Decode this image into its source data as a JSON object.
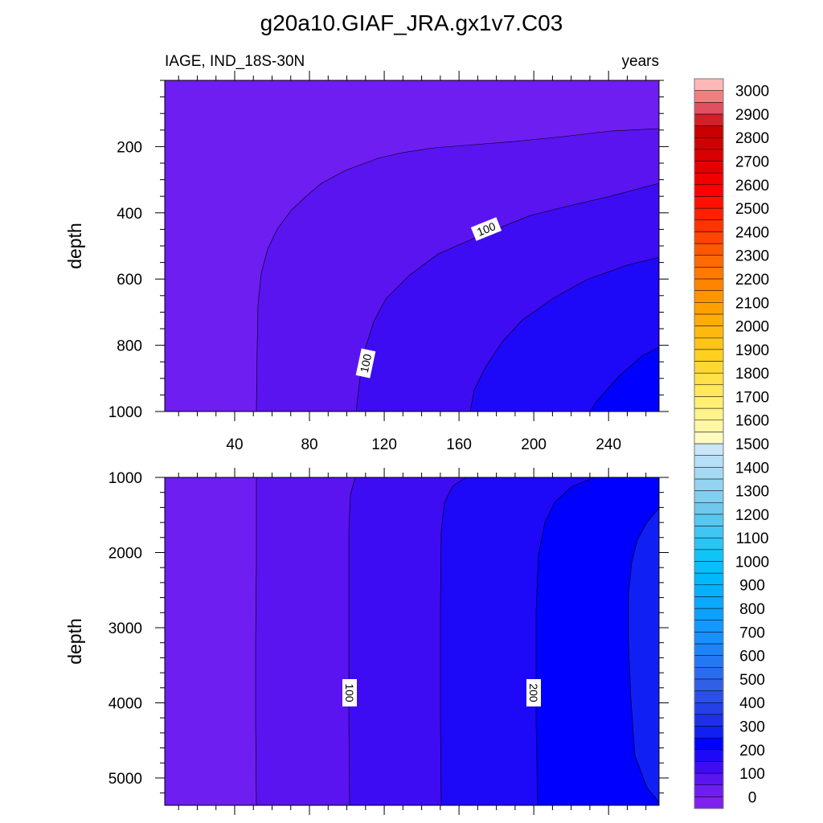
{
  "chart_data": {
    "type": "contour",
    "title": "g20a10.GIAF_JRA.gx1v7.C03",
    "left_string": "IAGE, IND_18S-30N",
    "right_string": "years",
    "xlim": [
      2.6,
      267
    ],
    "x_ticks": [
      40,
      80,
      120,
      160,
      200,
      240
    ],
    "panels": [
      {
        "name": "upper",
        "ylabel": "depth",
        "ylim": [
          0,
          1000
        ],
        "y_ticks": [
          200,
          400,
          600,
          800,
          1000
        ],
        "y_minor_step": 50,
        "contour_levels": [
          50,
          100,
          150,
          200
        ],
        "line_labels": [
          "100",
          "100"
        ]
      },
      {
        "name": "lower",
        "ylabel": "depth",
        "ylim": [
          1000,
          5364
        ],
        "y_ticks": [
          1000,
          2000,
          3000,
          4000,
          5000
        ],
        "y_minor_step": 200,
        "contour_levels": [
          50,
          100,
          150,
          200,
          250
        ],
        "line_labels": [
          "100",
          "200"
        ]
      }
    ],
    "colorbar": {
      "min": 0,
      "max": 3000,
      "step": 50,
      "labels": [
        "0",
        "100",
        "200",
        "300",
        "400",
        "500",
        "600",
        "700",
        "800",
        "900",
        "1000",
        "1100",
        "1200",
        "1300",
        "1400",
        "1500",
        "1600",
        "1700",
        "1800",
        "1900",
        "2000",
        "2100",
        "2200",
        "2300",
        "2400",
        "2500",
        "2600",
        "2700",
        "2800",
        "2900",
        "3000"
      ],
      "color_stops": [
        [
          0,
          "#7f1ff0"
        ],
        [
          1,
          "#6e1ef0"
        ],
        [
          2,
          "#5a14f0"
        ],
        [
          3,
          "#3e0cf2"
        ],
        [
          4,
          "#1e08f8"
        ],
        [
          5,
          "#0000ff"
        ],
        [
          6,
          "#1020f0"
        ],
        [
          7,
          "#2030e8"
        ],
        [
          10,
          "#3060e8"
        ],
        [
          14,
          "#1890ff"
        ],
        [
          19,
          "#00b8ff"
        ],
        [
          21,
          "#10c4f8"
        ],
        [
          25,
          "#70c8ec"
        ],
        [
          30,
          "#c8e6f8"
        ],
        [
          31,
          "#fffac0"
        ],
        [
          34,
          "#fff070"
        ],
        [
          38,
          "#ffd020"
        ],
        [
          42,
          "#ffa000"
        ],
        [
          46,
          "#ff6a00"
        ],
        [
          50,
          "#ff2000"
        ],
        [
          52,
          "#ff0000"
        ],
        [
          55,
          "#d80000"
        ],
        [
          57,
          "#c80000"
        ],
        [
          58,
          "#d02028"
        ],
        [
          59,
          "#e05060"
        ],
        [
          60,
          "#f08080"
        ],
        [
          61,
          "#ffb8b8"
        ]
      ]
    },
    "region_colors": [
      "#6e1ef0",
      "#5a14f0",
      "#3e0cf2",
      "#1e08f8",
      "#0000ff",
      "#1020f4"
    ]
  }
}
